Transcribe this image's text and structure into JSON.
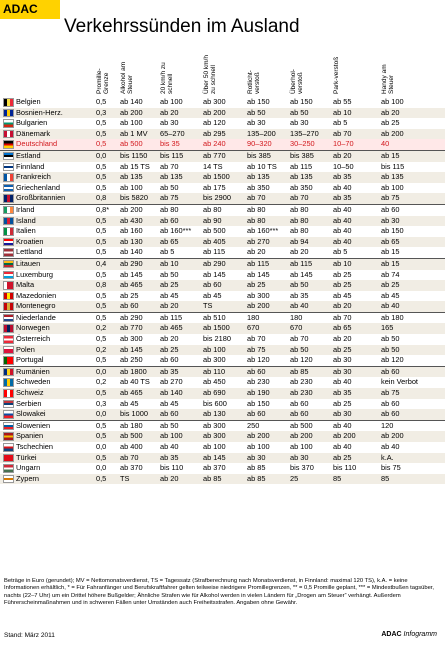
{
  "logo": "ADAC",
  "title": "Verkehrssünden im Ausland",
  "headers": [
    "Promille-Grenze",
    "Alkohol am Steuer",
    "20 km/h zu schnell",
    "Über 50 km/h zu schnell",
    "Rotlicht-verstoß",
    "Überhol-verstoß",
    "Park-verstoß",
    "Handy am Steuer"
  ],
  "rows": [
    {
      "country": "Belgien",
      "flag": [
        "#000",
        "#fae042",
        "#ed2939"
      ],
      "v": [
        "0,5",
        "ab 140",
        "ab 100",
        "ab 300",
        "ab 150",
        "ab 150",
        "ab 55",
        "ab 100"
      ]
    },
    {
      "country": "Bosnien-Herz.",
      "flag": [
        "#002395",
        "#fecb00",
        "#002395"
      ],
      "v": [
        "0,3",
        "ab 200",
        "ab 20",
        "ab 200",
        "ab 50",
        "ab 50",
        "ab 10",
        "ab 20"
      ]
    },
    {
      "country": "Bulgarien",
      "flag": [
        "#fff",
        "#00966e",
        "#d62612"
      ],
      "h": 1,
      "v": [
        "0,5",
        "ab 100",
        "ab 30",
        "ab 120",
        "ab 30",
        "ab 30",
        "ab 5",
        "ab 25"
      ]
    },
    {
      "country": "Dänemark",
      "flag": [
        "#c60c30",
        "#fff",
        "#c60c30"
      ],
      "v": [
        "0,5",
        "ab 1 MV",
        "65–270",
        "ab 295",
        "135–200",
        "135–270",
        "ab 70",
        "ab 200"
      ]
    },
    {
      "country": "Deutschland",
      "flag": [
        "#000",
        "#dd0000",
        "#ffce00"
      ],
      "h": 1,
      "hl": 1,
      "v": [
        "0,5",
        "ab 500",
        "bis 35",
        "ab 240",
        "90–320",
        "30–250",
        "10–70",
        "40"
      ]
    },
    {
      "country": "Estland",
      "flag": [
        "#0072ce",
        "#000",
        "#fff"
      ],
      "h": 1,
      "sep": 1,
      "v": [
        "0,0",
        "bis 1150",
        "bis 115",
        "ab 770",
        "bis 385",
        "bis 385",
        "ab 20",
        "ab 15"
      ]
    },
    {
      "country": "Finnland",
      "flag": [
        "#fff",
        "#003580",
        "#fff"
      ],
      "h": 1,
      "v": [
        "0,5",
        "ab 15 TS",
        "ab 70",
        "14 TS",
        "ab 10 TS",
        "ab 115",
        "10–50",
        "bis 115"
      ]
    },
    {
      "country": "Frankreich",
      "flag": [
        "#0055a4",
        "#fff",
        "#ef4135"
      ],
      "v": [
        "0,5",
        "ab 135",
        "ab 135",
        "ab 1500",
        "ab 135",
        "ab 135",
        "ab 35",
        "ab 135"
      ]
    },
    {
      "country": "Griechenland",
      "flag": [
        "#0d5eaf",
        "#fff",
        "#0d5eaf"
      ],
      "h": 1,
      "v": [
        "0,5",
        "ab 100",
        "ab 50",
        "ab 175",
        "ab 350",
        "ab 350",
        "ab 40",
        "ab 100"
      ]
    },
    {
      "country": "Großbritannien",
      "flag": [
        "#012169",
        "#c8102e",
        "#012169"
      ],
      "v": [
        "0,8",
        "bis 5820",
        "ab 75",
        "bis 2900",
        "ab 70",
        "ab 70",
        "ab 35",
        "ab 75"
      ]
    },
    {
      "country": "Irland",
      "flag": [
        "#169b62",
        "#fff",
        "#ff883e"
      ],
      "sep": 1,
      "v": [
        "0,8*",
        "ab 200",
        "ab 80",
        "ab 80",
        "ab 80",
        "ab 80",
        "ab 40",
        "ab 60"
      ]
    },
    {
      "country": "Island",
      "flag": [
        "#02529c",
        "#dc1e35",
        "#02529c"
      ],
      "v": [
        "0,5",
        "ab 430",
        "ab 60",
        "ab 90",
        "ab 80",
        "ab 80",
        "ab 40",
        "ab 30"
      ]
    },
    {
      "country": "Italien",
      "flag": [
        "#009246",
        "#fff",
        "#ce2b37"
      ],
      "v": [
        "0,5",
        "ab 160",
        "ab 160***",
        "ab 500",
        "ab 160***",
        "ab 80",
        "ab 40",
        "ab 150"
      ]
    },
    {
      "country": "Kroatien",
      "flag": [
        "#ff0000",
        "#fff",
        "#171796"
      ],
      "h": 1,
      "v": [
        "0,5",
        "ab 130",
        "ab 65",
        "ab 405",
        "ab 270",
        "ab 94",
        "ab 40",
        "ab 65"
      ]
    },
    {
      "country": "Lettland",
      "flag": [
        "#9e3039",
        "#fff",
        "#9e3039"
      ],
      "h": 1,
      "v": [
        "0,5",
        "ab 140",
        "ab 5",
        "ab 115",
        "ab 20",
        "ab 20",
        "ab 5",
        "ab 15"
      ]
    },
    {
      "country": "Litauen",
      "flag": [
        "#fdb913",
        "#006a44",
        "#c1272d"
      ],
      "h": 1,
      "sep": 1,
      "v": [
        "0,4",
        "ab 290",
        "ab 10",
        "ab 290",
        "ab 115",
        "ab 115",
        "ab 10",
        "ab 15"
      ]
    },
    {
      "country": "Luxemburg",
      "flag": [
        "#ed2939",
        "#fff",
        "#00a1de"
      ],
      "h": 1,
      "v": [
        "0,5",
        "ab 145",
        "ab 50",
        "ab 145",
        "ab 145",
        "ab 145",
        "ab 25",
        "ab 74"
      ]
    },
    {
      "country": "Malta",
      "flag": [
        "#fff",
        "#cf142b",
        "#cf142b"
      ],
      "v": [
        "0,8",
        "ab 465",
        "ab 25",
        "ab 60",
        "ab 25",
        "ab 50",
        "ab 25",
        "ab 25"
      ]
    },
    {
      "country": "Mazedonien",
      "flag": [
        "#d20000",
        "#ffe600",
        "#d20000"
      ],
      "v": [
        "0,5",
        "ab 25",
        "ab 45",
        "ab 45",
        "ab 300",
        "ab 35",
        "ab 45",
        "ab 45"
      ]
    },
    {
      "country": "Montenegro",
      "flag": [
        "#c40308",
        "#d4af3a",
        "#c40308"
      ],
      "v": [
        "0,5",
        "ab 60",
        "ab 20",
        "TS",
        "ab 200",
        "ab 40",
        "ab 20",
        "ab 40"
      ]
    },
    {
      "country": "Niederlande",
      "flag": [
        "#ae1c28",
        "#fff",
        "#21468b"
      ],
      "h": 1,
      "sep": 1,
      "v": [
        "0,5",
        "ab 290",
        "ab 115",
        "ab 510",
        "180",
        "180",
        "ab 70",
        "ab 180"
      ]
    },
    {
      "country": "Norwegen",
      "flag": [
        "#ba0c2f",
        "#00205b",
        "#ba0c2f"
      ],
      "v": [
        "0,2",
        "ab 770",
        "ab 465",
        "ab 1500",
        "670",
        "670",
        "ab 65",
        "165"
      ]
    },
    {
      "country": "Österreich",
      "flag": [
        "#ed2939",
        "#fff",
        "#ed2939"
      ],
      "h": 1,
      "v": [
        "0,5",
        "ab 300",
        "ab 20",
        "bis 2180",
        "ab 70",
        "ab 70",
        "ab 20",
        "ab 50"
      ]
    },
    {
      "country": "Polen",
      "flag": [
        "#fff",
        "#dc143c",
        "#dc143c"
      ],
      "h": 1,
      "v": [
        "0,2",
        "ab 145",
        "ab 25",
        "ab 100",
        "ab 75",
        "ab 50",
        "ab 25",
        "ab 50"
      ]
    },
    {
      "country": "Portugal",
      "flag": [
        "#006600",
        "#ff0000",
        "#ff0000"
      ],
      "v": [
        "0,5",
        "ab 250",
        "ab 60",
        "ab 300",
        "ab 120",
        "ab 120",
        "ab 30",
        "ab 120"
      ]
    },
    {
      "country": "Rumänien",
      "flag": [
        "#002b7f",
        "#fcd116",
        "#ce1126"
      ],
      "sep": 1,
      "v": [
        "0,0",
        "ab 1800",
        "ab 35",
        "ab 110",
        "ab 60",
        "ab 85",
        "ab 30",
        "ab 60"
      ]
    },
    {
      "country": "Schweden",
      "flag": [
        "#006aa7",
        "#fecc00",
        "#006aa7"
      ],
      "v": [
        "0,2",
        "ab 40 TS",
        "ab 270",
        "ab 450",
        "ab 230",
        "ab 230",
        "ab 40",
        "kein Verbot"
      ]
    },
    {
      "country": "Schweiz",
      "flag": [
        "#ff0000",
        "#fff",
        "#ff0000"
      ],
      "v": [
        "0,5",
        "ab 465",
        "ab 140",
        "ab 690",
        "ab 190",
        "ab 230",
        "ab 35",
        "ab 75"
      ]
    },
    {
      "country": "Serbien",
      "flag": [
        "#c6363c",
        "#0c4076",
        "#fff"
      ],
      "h": 1,
      "v": [
        "0,3",
        "ab 45",
        "ab 45",
        "bis 600",
        "ab 150",
        "ab 60",
        "ab 25",
        "ab 60"
      ]
    },
    {
      "country": "Slowakei",
      "flag": [
        "#fff",
        "#0b4ea2",
        "#ee1c25"
      ],
      "h": 1,
      "v": [
        "0,0",
        "bis 1000",
        "ab 60",
        "ab 130",
        "ab 60",
        "ab 60",
        "ab 30",
        "ab 60"
      ]
    },
    {
      "country": "Slowenien",
      "flag": [
        "#fff",
        "#005da4",
        "#ed1c24"
      ],
      "h": 1,
      "sep": 1,
      "v": [
        "0,5",
        "ab 180",
        "ab 50",
        "ab 300",
        "250",
        "ab 500",
        "ab 40",
        "120"
      ]
    },
    {
      "country": "Spanien",
      "flag": [
        "#aa151b",
        "#f1bf00",
        "#aa151b"
      ],
      "h": 1,
      "v": [
        "0,5",
        "ab 500",
        "ab 100",
        "ab 300",
        "ab 200",
        "ab 200",
        "ab 200",
        "ab 200"
      ]
    },
    {
      "country": "Tschechien",
      "flag": [
        "#fff",
        "#d7141a",
        "#11457e"
      ],
      "h": 1,
      "v": [
        "0,0",
        "ab 400",
        "ab 40",
        "ab 100",
        "ab 100",
        "ab 100",
        "ab 40",
        "ab 40"
      ]
    },
    {
      "country": "Türkei",
      "flag": [
        "#e30a17",
        "#e30a17",
        "#e30a17"
      ],
      "v": [
        "0,5",
        "ab 70",
        "ab 35",
        "ab 145",
        "ab 30",
        "ab 30",
        "ab 25",
        "k.A."
      ]
    },
    {
      "country": "Ungarn",
      "flag": [
        "#ce2939",
        "#fff",
        "#477050"
      ],
      "h": 1,
      "v": [
        "0,0",
        "ab 370",
        "bis 110",
        "ab 370",
        "ab 85",
        "bis 370",
        "bis 110",
        "bis 75"
      ]
    },
    {
      "country": "Zypern",
      "flag": [
        "#fff",
        "#d57800",
        "#fff"
      ],
      "h": 1,
      "v": [
        "0,5",
        "TS",
        "ab 20",
        "ab 85",
        "ab 85",
        "25",
        "85",
        "85"
      ]
    }
  ],
  "footnote": "Beträge in Euro (gerundet); MV = Nettomonatsverdienst, TS = Tagessatz (Strafberechnung nach Monatsverdienst, in Finnland: maximal 120 TS), k.A. = keine Informationen erhältlich, * = Für Fahranfänger und Berufskraftfahrer gelten teilweise niedrigere Promillegrenzen, ** = 0,5 Promille geplant, *** = Mindestbußen tagsüber, nachts (22–7 Uhr) um ein Drittel höhere Bußgelder; Ähnliche Strafen wie für Alkohol werden in vielen Ländern für „Drogen am Steuer“ verhängt. Außerdem Führerscheinmaßnahmen und in schweren Fällen unter Umständen auch Freiheitsstrafen. Angaben ohne Gewähr.",
  "stand": "Stand: März 2011",
  "brand_main": "ADAC",
  "brand_sub": "Infogramm"
}
